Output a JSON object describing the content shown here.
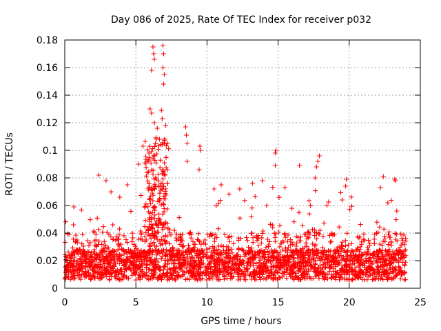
{
  "chart_data": {
    "type": "scatter",
    "title": "Day 086 of 2025, Rate Of TEC Index for receiver p032",
    "xlabel": "GPS time / hours",
    "ylabel": "ROTI / TECUs",
    "xlim": [
      0,
      25
    ],
    "ylim": [
      0,
      0.18
    ],
    "xticks": [
      0,
      5,
      10,
      15,
      20,
      25
    ],
    "xtick_labels": [
      "0",
      "5",
      "10",
      "15",
      "20",
      "25"
    ],
    "yticks": [
      0,
      0.02,
      0.04,
      0.06,
      0.08,
      0.1,
      0.12,
      0.14,
      0.16,
      0.18
    ],
    "ytick_labels": [
      "0",
      "0.02",
      "0.04",
      "0.06",
      "0.08",
      "0.1",
      "0.12",
      "0.14",
      "0.16",
      "0.18"
    ],
    "grid": true,
    "marker": "+",
    "color": "#ff0000",
    "data_extent_hours": [
      0,
      24
    ],
    "series": [
      {
        "name": "ROTI",
        "description_points": "dense baseline 0.005-0.05 TECU/s over 0-24 h with enhanced activity",
        "highlights": [
          {
            "x": 6.2,
            "y": 0.175
          },
          {
            "x": 6.25,
            "y": 0.17
          },
          {
            "x": 6.3,
            "y": 0.166
          },
          {
            "x": 6.1,
            "y": 0.158
          },
          {
            "x": 6.9,
            "y": 0.176
          },
          {
            "x": 6.95,
            "y": 0.17
          },
          {
            "x": 6.9,
            "y": 0.16
          },
          {
            "x": 7.0,
            "y": 0.155
          },
          {
            "x": 6.95,
            "y": 0.148
          },
          {
            "x": 6.0,
            "y": 0.13
          },
          {
            "x": 6.1,
            "y": 0.127
          },
          {
            "x": 6.8,
            "y": 0.129
          },
          {
            "x": 6.85,
            "y": 0.123
          },
          {
            "x": 6.3,
            "y": 0.12
          },
          {
            "x": 6.5,
            "y": 0.116
          },
          {
            "x": 7.1,
            "y": 0.118
          },
          {
            "x": 8.5,
            "y": 0.117
          },
          {
            "x": 8.55,
            "y": 0.111
          },
          {
            "x": 8.6,
            "y": 0.105
          },
          {
            "x": 8.6,
            "y": 0.092
          },
          {
            "x": 9.5,
            "y": 0.103
          },
          {
            "x": 9.55,
            "y": 0.1
          },
          {
            "x": 9.45,
            "y": 0.086
          },
          {
            "x": 5.2,
            "y": 0.09
          },
          {
            "x": 5.5,
            "y": 0.103
          },
          {
            "x": 14.85,
            "y": 0.1
          },
          {
            "x": 14.8,
            "y": 0.098
          },
          {
            "x": 14.8,
            "y": 0.089
          },
          {
            "x": 16.5,
            "y": 0.089
          },
          {
            "x": 17.9,
            "y": 0.096
          },
          {
            "x": 17.8,
            "y": 0.092
          },
          {
            "x": 17.7,
            "y": 0.088
          },
          {
            "x": 17.6,
            "y": 0.08
          },
          {
            "x": 2.4,
            "y": 0.082
          },
          {
            "x": 2.9,
            "y": 0.078
          },
          {
            "x": 22.4,
            "y": 0.081
          },
          {
            "x": 22.2,
            "y": 0.073
          },
          {
            "x": 23.2,
            "y": 0.079
          },
          {
            "x": 23.25,
            "y": 0.078
          },
          {
            "x": 19.8,
            "y": 0.079
          },
          {
            "x": 19.75,
            "y": 0.074
          },
          {
            "x": 4.4,
            "y": 0.075
          },
          {
            "x": 13.9,
            "y": 0.078
          },
          {
            "x": 11.0,
            "y": 0.075
          },
          {
            "x": 12.3,
            "y": 0.072
          },
          {
            "x": 13.2,
            "y": 0.076
          },
          {
            "x": 10.5,
            "y": 0.072
          },
          {
            "x": 19.5,
            "y": 0.064
          }
        ]
      }
    ]
  }
}
